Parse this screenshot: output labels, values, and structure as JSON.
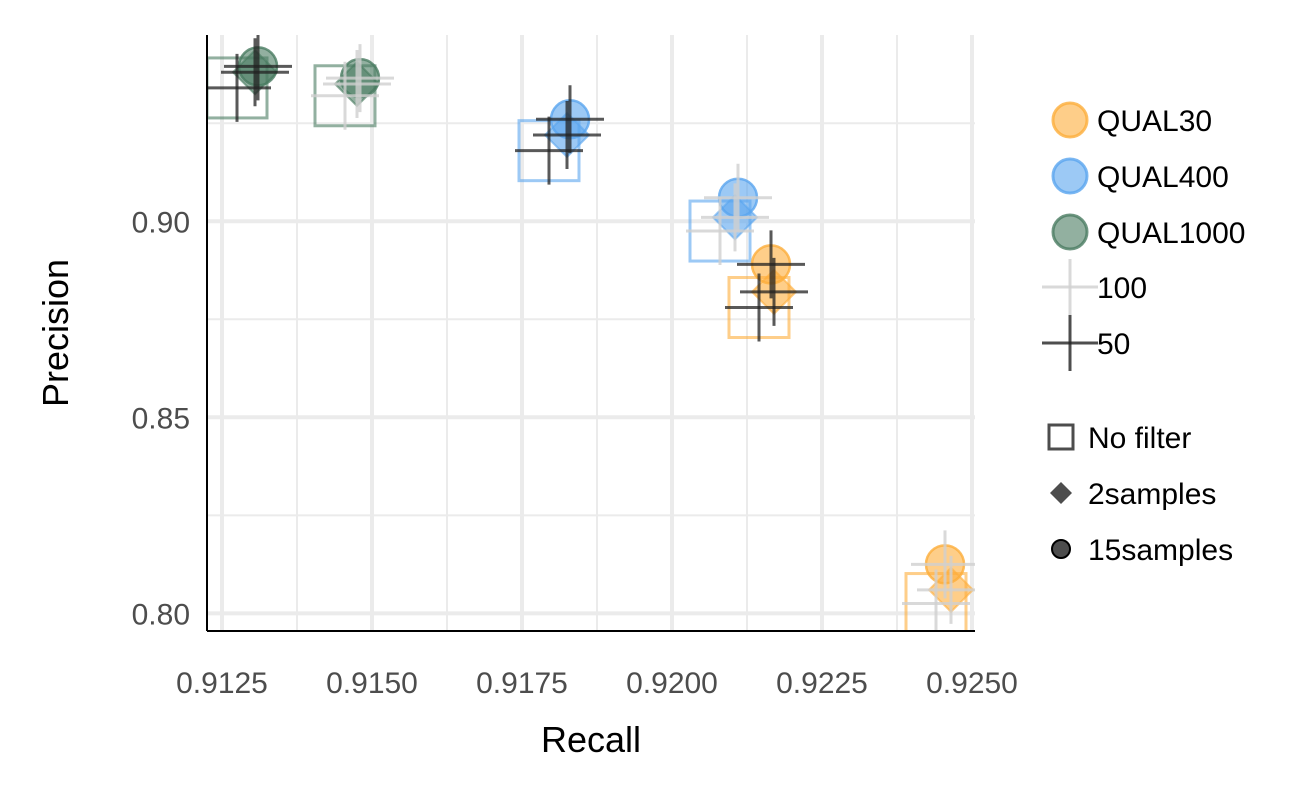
{
  "chart_data": {
    "type": "scatter",
    "title": "",
    "xlabel": "Recall",
    "ylabel": "Precision",
    "xlim": [
      0.91225,
      0.92505
    ],
    "ylim": [
      0.7955,
      0.9475
    ],
    "x_ticks": [
      "0.9125",
      "0.9150",
      "0.9175",
      "0.9200",
      "0.9225",
      "0.9250"
    ],
    "x_tick_values": [
      0.9125,
      0.915,
      0.9175,
      0.92,
      0.9225,
      0.925
    ],
    "y_ticks": [
      "0.80",
      "0.85",
      "0.90"
    ],
    "y_tick_values": [
      0.8,
      0.85,
      0.9
    ],
    "grid": true,
    "legend_position": "right",
    "colors": {
      "QUAL30": "#fdae3b",
      "QUAL400": "#5aa5ef",
      "QUAL1000": "#4a7c61",
      "100": "#d0d0d0",
      "50": "#222222"
    },
    "legend": {
      "color": [
        {
          "label": "QUAL30",
          "key": "QUAL30"
        },
        {
          "label": "QUAL400",
          "key": "QUAL400"
        },
        {
          "label": "QUAL1000",
          "key": "QUAL1000"
        }
      ],
      "cross": [
        {
          "label": "100",
          "key": "100"
        },
        {
          "label": "50",
          "key": "50"
        }
      ],
      "shape": [
        {
          "label": "No filter",
          "shape": "square"
        },
        {
          "label": "2samples",
          "shape": "diamond"
        },
        {
          "label": "15samples",
          "shape": "circle"
        }
      ]
    },
    "points": [
      {
        "qual": "QUAL1000",
        "shape": "square",
        "x": 0.91275,
        "y": 0.934,
        "cross": "50"
      },
      {
        "qual": "QUAL1000",
        "shape": "diamond",
        "x": 0.91305,
        "y": 0.938,
        "cross": "50"
      },
      {
        "qual": "QUAL1000",
        "shape": "circle",
        "x": 0.9131,
        "y": 0.9395,
        "cross": "50"
      },
      {
        "qual": "QUAL1000",
        "shape": "square",
        "x": 0.91455,
        "y": 0.932,
        "cross": "100"
      },
      {
        "qual": "QUAL1000",
        "shape": "diamond",
        "x": 0.91475,
        "y": 0.935,
        "cross": "100"
      },
      {
        "qual": "QUAL1000",
        "shape": "circle",
        "x": 0.9148,
        "y": 0.9365,
        "cross": "100"
      },
      {
        "qual": "QUAL400",
        "shape": "square",
        "x": 0.91795,
        "y": 0.918,
        "cross": "50"
      },
      {
        "qual": "QUAL400",
        "shape": "diamond",
        "x": 0.91825,
        "y": 0.922,
        "cross": "50"
      },
      {
        "qual": "QUAL400",
        "shape": "circle",
        "x": 0.9183,
        "y": 0.926,
        "cross": "50"
      },
      {
        "qual": "QUAL400",
        "shape": "square",
        "x": 0.9208,
        "y": 0.8975,
        "cross": "100"
      },
      {
        "qual": "QUAL400",
        "shape": "diamond",
        "x": 0.92105,
        "y": 0.901,
        "cross": "100"
      },
      {
        "qual": "QUAL400",
        "shape": "circle",
        "x": 0.9211,
        "y": 0.906,
        "cross": "100"
      },
      {
        "qual": "QUAL30",
        "shape": "square",
        "x": 0.92145,
        "y": 0.878,
        "cross": "50"
      },
      {
        "qual": "QUAL30",
        "shape": "diamond",
        "x": 0.9217,
        "y": 0.882,
        "cross": "50"
      },
      {
        "qual": "QUAL30",
        "shape": "circle",
        "x": 0.92165,
        "y": 0.889,
        "cross": "50"
      },
      {
        "qual": "QUAL30",
        "shape": "square",
        "x": 0.9244,
        "y": 0.8025,
        "cross": "100"
      },
      {
        "qual": "QUAL30",
        "shape": "diamond",
        "x": 0.92465,
        "y": 0.806,
        "cross": "100"
      },
      {
        "qual": "QUAL30",
        "shape": "circle",
        "x": 0.92455,
        "y": 0.8125,
        "cross": "100"
      }
    ]
  }
}
